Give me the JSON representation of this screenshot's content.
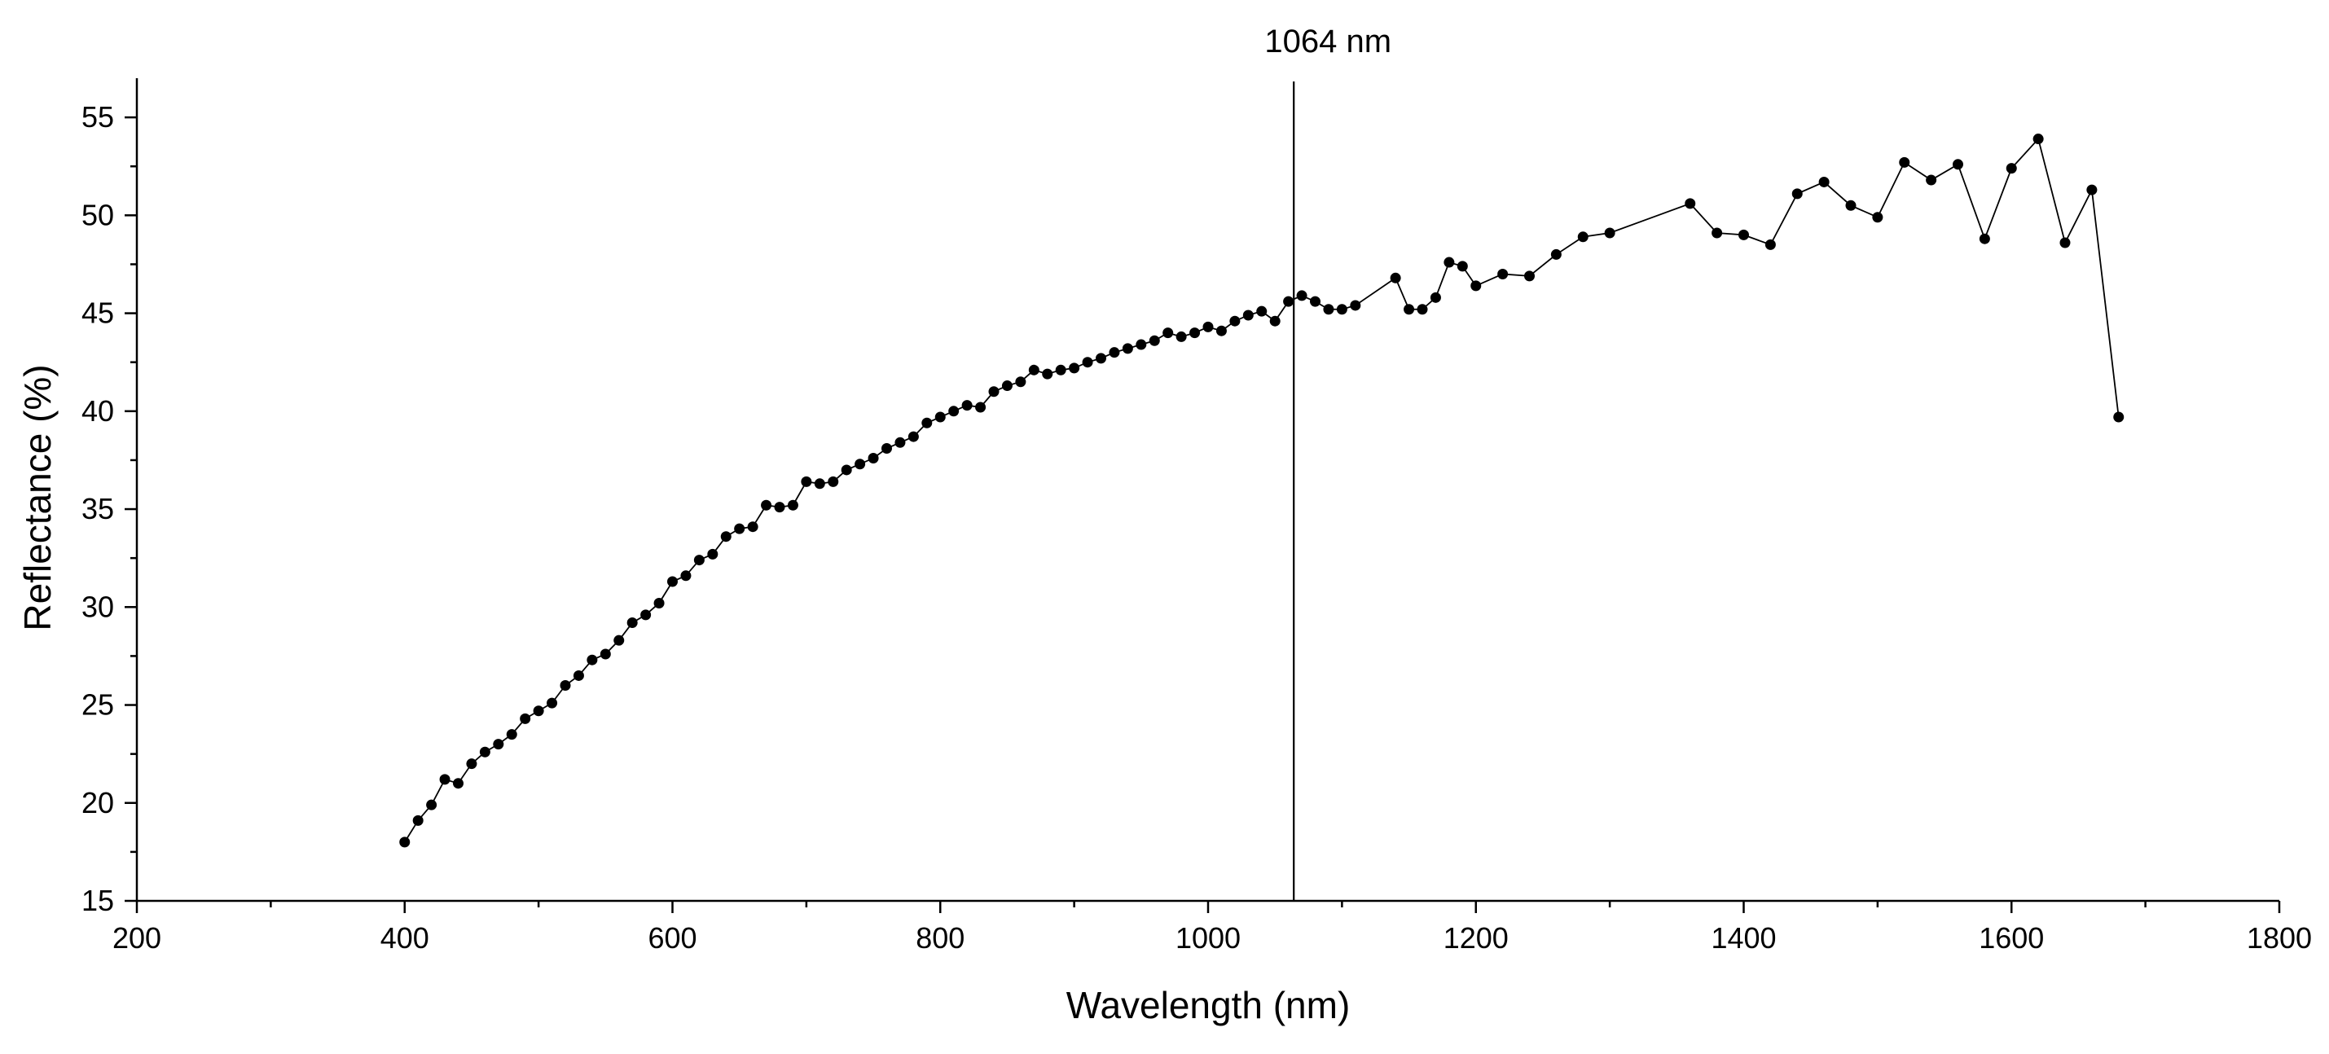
{
  "chart_data": {
    "type": "line",
    "title": "",
    "xlabel": "Wavelength (nm)",
    "ylabel": "Reflectance (%)",
    "xlim": [
      200,
      1800
    ],
    "ylim": [
      15,
      57
    ],
    "x_ticks": [
      200,
      400,
      600,
      800,
      1000,
      1200,
      1400,
      1600,
      1800
    ],
    "y_ticks": [
      15,
      20,
      25,
      30,
      35,
      40,
      45,
      50,
      55
    ],
    "grid": false,
    "annotation": {
      "label": "1064 nm",
      "x": 1064
    },
    "series": [
      {
        "name": "Reflectance",
        "marker": "circle",
        "color": "#000000",
        "x": [
          400,
          410,
          420,
          430,
          440,
          450,
          460,
          470,
          480,
          490,
          500,
          510,
          520,
          530,
          540,
          550,
          560,
          570,
          580,
          590,
          600,
          610,
          620,
          630,
          640,
          650,
          660,
          670,
          680,
          690,
          700,
          710,
          720,
          730,
          740,
          750,
          760,
          770,
          780,
          790,
          800,
          810,
          820,
          830,
          840,
          850,
          860,
          870,
          880,
          890,
          900,
          910,
          920,
          930,
          940,
          950,
          960,
          970,
          980,
          990,
          1000,
          1010,
          1020,
          1030,
          1040,
          1050,
          1060,
          1070,
          1080,
          1090,
          1100,
          1110,
          1140,
          1150,
          1160,
          1170,
          1180,
          1190,
          1200,
          1220,
          1240,
          1260,
          1280,
          1300,
          1360,
          1380,
          1400,
          1420,
          1440,
          1460,
          1480,
          1500,
          1520,
          1540,
          1560,
          1580,
          1600,
          1620,
          1640,
          1660,
          1680
        ],
        "y": [
          18.0,
          19.1,
          19.9,
          21.2,
          21.0,
          22.0,
          22.6,
          23.0,
          23.5,
          24.3,
          24.7,
          25.1,
          26.0,
          26.5,
          27.3,
          27.6,
          28.3,
          29.2,
          29.6,
          30.2,
          31.3,
          31.6,
          32.4,
          32.7,
          33.6,
          34.0,
          34.1,
          35.2,
          35.1,
          35.2,
          36.4,
          36.3,
          36.4,
          37.0,
          37.3,
          37.6,
          38.1,
          38.4,
          38.7,
          39.4,
          39.7,
          40.0,
          40.3,
          40.2,
          41.0,
          41.3,
          41.5,
          42.1,
          41.9,
          42.1,
          42.2,
          42.5,
          42.7,
          43.0,
          43.2,
          43.4,
          43.6,
          44.0,
          43.8,
          44.0,
          44.3,
          44.1,
          44.6,
          44.9,
          45.1,
          44.6,
          45.6,
          45.9,
          45.6,
          45.2,
          45.2,
          45.4,
          46.8,
          45.2,
          45.2,
          45.8,
          47.6,
          47.4,
          46.4,
          47.0,
          46.9,
          48.0,
          48.9,
          49.1,
          50.6,
          49.1,
          49.0,
          48.5,
          51.1,
          51.7,
          50.5,
          49.9,
          52.7,
          51.8,
          52.6,
          48.8,
          52.4,
          53.9,
          48.6,
          51.3,
          39.7
        ]
      }
    ]
  }
}
